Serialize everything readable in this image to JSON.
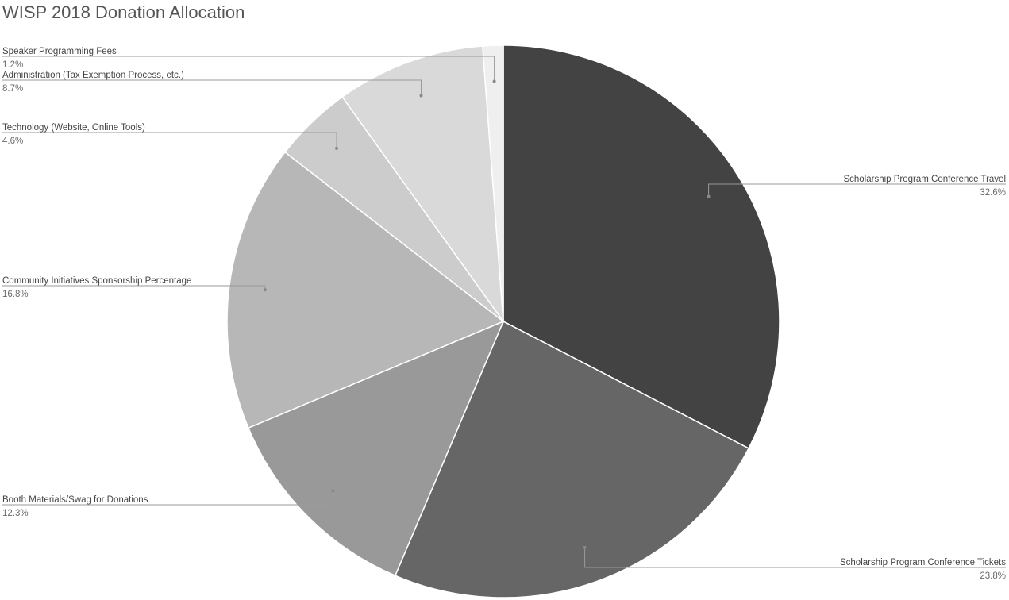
{
  "chart_data": {
    "type": "pie",
    "title": "WISP 2018 Donation Allocation",
    "slices": [
      {
        "label": "Scholarship Program Conference Travel",
        "value": 32.6,
        "display": "32.6%",
        "color": "#434343",
        "side": "right"
      },
      {
        "label": "Scholarship Program Conference Tickets",
        "value": 23.8,
        "display": "23.8%",
        "color": "#666666",
        "side": "right"
      },
      {
        "label": "Booth Materials/Swag for Donations",
        "value": 12.3,
        "display": "12.3%",
        "color": "#999999",
        "side": "left"
      },
      {
        "label": "Community Initiatives Sponsorship Percentage",
        "value": 16.8,
        "display": "16.8%",
        "color": "#b7b7b7",
        "side": "left"
      },
      {
        "label": "Technology (Website, Online Tools)",
        "value": 4.6,
        "display": "4.6%",
        "color": "#cccccc",
        "side": "left"
      },
      {
        "label": "Administration (Tax Exemption Process, etc.)",
        "value": 8.7,
        "display": "8.7%",
        "color": "#d9d9d9",
        "side": "left"
      },
      {
        "label": "Speaker Programming Fees",
        "value": 1.2,
        "display": "1.2%",
        "color": "#efefef",
        "side": "left"
      }
    ],
    "start_angle": "12 o'clock",
    "direction": "clockwise",
    "legend": "none",
    "labels": "outside with leader lines"
  }
}
